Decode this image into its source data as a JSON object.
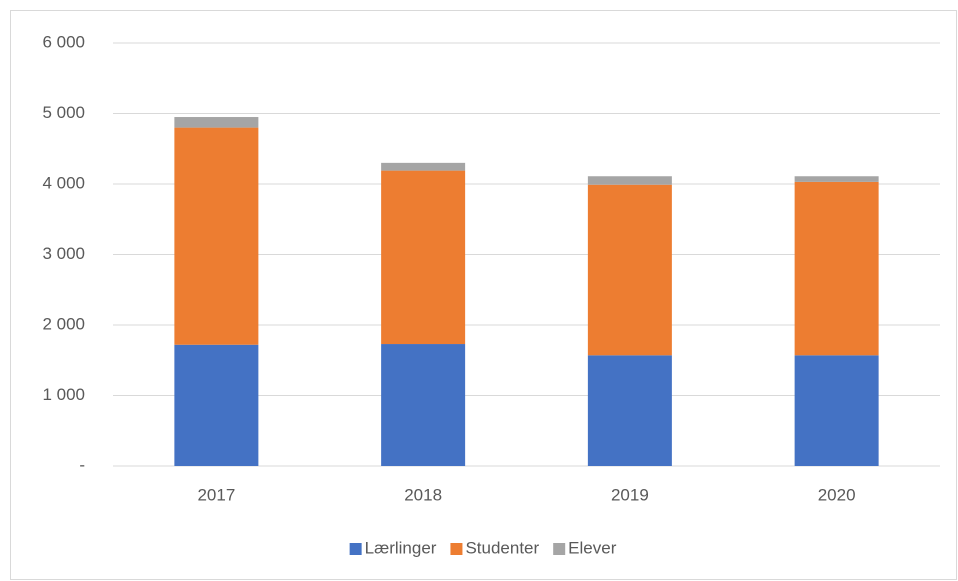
{
  "chart_data": {
    "type": "stacked_bar",
    "categories": [
      "2017",
      "2018",
      "2019",
      "2020"
    ],
    "series": [
      {
        "name": "Lærlinger",
        "color": "#4472c4",
        "values": [
          1720,
          1730,
          1570,
          1570
        ]
      },
      {
        "name": "Studenter",
        "color": "#ed7d31",
        "values": [
          3080,
          2460,
          2420,
          2460
        ]
      },
      {
        "name": "Elever",
        "color": "#a5a5a5",
        "values": [
          150,
          110,
          120,
          80
        ]
      }
    ],
    "ylim": [
      0,
      6000
    ],
    "yticks": [
      {
        "value": 0,
        "label": "-"
      },
      {
        "value": 1000,
        "label": "1 000"
      },
      {
        "value": 2000,
        "label": "2 000"
      },
      {
        "value": 3000,
        "label": "3 000"
      },
      {
        "value": 4000,
        "label": "4 000"
      },
      {
        "value": 5000,
        "label": "5 000"
      },
      {
        "value": 6000,
        "label": "6 000"
      }
    ],
    "grid": true,
    "legend": "bottom"
  }
}
